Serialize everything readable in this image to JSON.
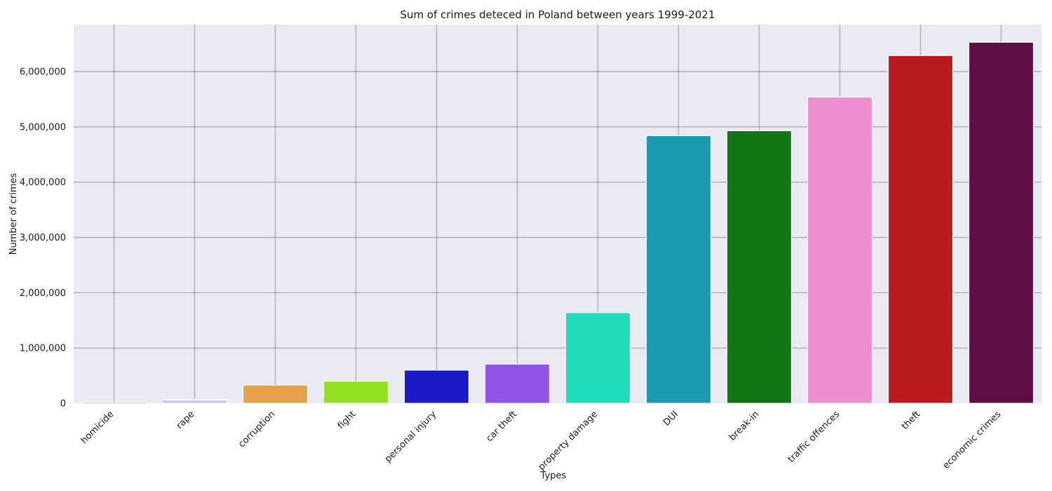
{
  "chart_data": {
    "type": "bar",
    "title": "Sum of crimes deteced in Poland between years 1999-2021",
    "xlabel": "Types",
    "ylabel": "Number of crimes",
    "ylim": [
      0,
      6850000
    ],
    "yticks": [
      0,
      1000000,
      2000000,
      3000000,
      4000000,
      5000000,
      6000000
    ],
    "ytick_labels": [
      "0",
      "1,000,000",
      "2,000,000",
      "3,000,000",
      "4,000,000",
      "5,000,000",
      "6,000,000"
    ],
    "grid": true,
    "categories": [
      "homicide",
      "rape",
      "corruption",
      "fight",
      "personal injury",
      "car theft",
      "property damage",
      "DUI",
      "break-in",
      "traffic offences",
      "theft",
      "economic crimes"
    ],
    "values": [
      20000,
      60000,
      330000,
      400000,
      600000,
      710000,
      1640000,
      4840000,
      4930000,
      5540000,
      6290000,
      6530000
    ],
    "colors": [
      "#8c5a4e",
      "#c8c3f7",
      "#e5a04a",
      "#93e021",
      "#1c1ac6",
      "#9254e6",
      "#1fdcbb",
      "#1a99b0",
      "#117614",
      "#ef8ecf",
      "#ba1b1c",
      "#5e0d45"
    ]
  }
}
